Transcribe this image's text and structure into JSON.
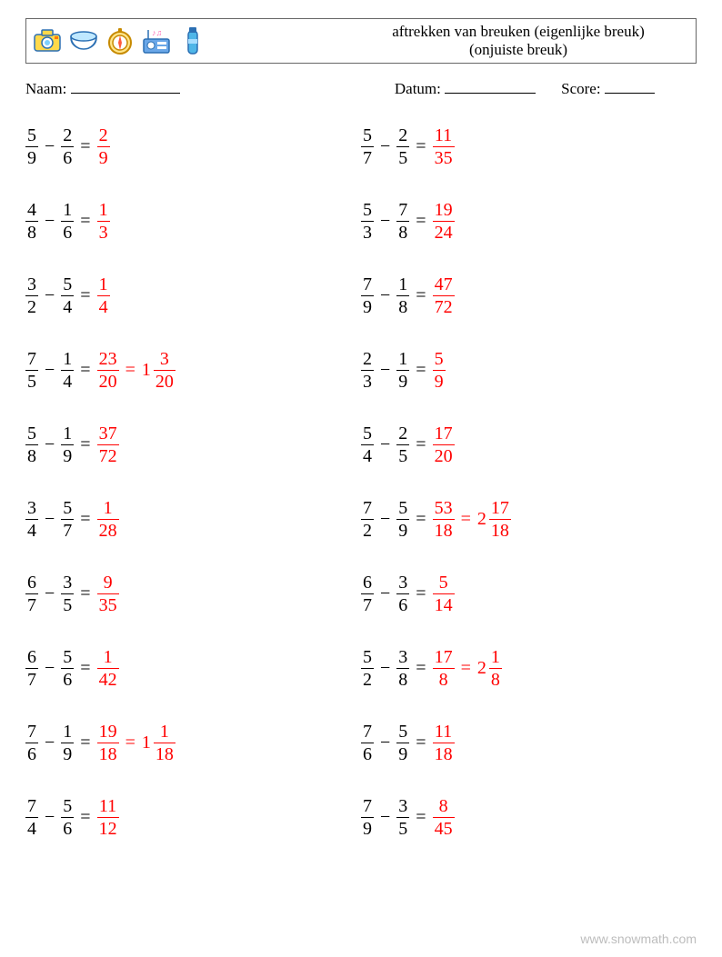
{
  "header": {
    "title_line1": "aftrekken van breuken (eigenlijke breuk)",
    "title_line2": "(onjuiste breuk)"
  },
  "meta": {
    "name_label": "Naam:",
    "date_label": "Datum:",
    "score_label": "Score:",
    "name_line_width": 120,
    "date_line_width": 100,
    "score_line_width": 55
  },
  "icons": [
    {
      "name": "camera-icon"
    },
    {
      "name": "bowl-icon"
    },
    {
      "name": "compass-icon"
    },
    {
      "name": "radio-icon"
    },
    {
      "name": "thermos-icon"
    }
  ],
  "columns": [
    [
      {
        "a": {
          "n": 5,
          "d": 9
        },
        "b": {
          "n": 2,
          "d": 6
        },
        "ans": [
          {
            "type": "frac",
            "n": 2,
            "d": 9
          }
        ]
      },
      {
        "a": {
          "n": 4,
          "d": 8
        },
        "b": {
          "n": 1,
          "d": 6
        },
        "ans": [
          {
            "type": "frac",
            "n": 1,
            "d": 3
          }
        ]
      },
      {
        "a": {
          "n": 3,
          "d": 2
        },
        "b": {
          "n": 5,
          "d": 4
        },
        "ans": [
          {
            "type": "frac",
            "n": 1,
            "d": 4
          }
        ]
      },
      {
        "a": {
          "n": 7,
          "d": 5
        },
        "b": {
          "n": 1,
          "d": 4
        },
        "ans": [
          {
            "type": "frac",
            "n": 23,
            "d": 20
          },
          {
            "type": "eq"
          },
          {
            "type": "mixed",
            "w": 1,
            "n": 3,
            "d": 20
          }
        ]
      },
      {
        "a": {
          "n": 5,
          "d": 8
        },
        "b": {
          "n": 1,
          "d": 9
        },
        "ans": [
          {
            "type": "frac",
            "n": 37,
            "d": 72
          }
        ]
      },
      {
        "a": {
          "n": 3,
          "d": 4
        },
        "b": {
          "n": 5,
          "d": 7
        },
        "ans": [
          {
            "type": "frac",
            "n": 1,
            "d": 28
          }
        ]
      },
      {
        "a": {
          "n": 6,
          "d": 7
        },
        "b": {
          "n": 3,
          "d": 5
        },
        "ans": [
          {
            "type": "frac",
            "n": 9,
            "d": 35
          }
        ]
      },
      {
        "a": {
          "n": 6,
          "d": 7
        },
        "b": {
          "n": 5,
          "d": 6
        },
        "ans": [
          {
            "type": "frac",
            "n": 1,
            "d": 42
          }
        ]
      },
      {
        "a": {
          "n": 7,
          "d": 6
        },
        "b": {
          "n": 1,
          "d": 9
        },
        "ans": [
          {
            "type": "frac",
            "n": 19,
            "d": 18
          },
          {
            "type": "eq"
          },
          {
            "type": "mixed",
            "w": 1,
            "n": 1,
            "d": 18
          }
        ]
      },
      {
        "a": {
          "n": 7,
          "d": 4
        },
        "b": {
          "n": 5,
          "d": 6
        },
        "ans": [
          {
            "type": "frac",
            "n": 11,
            "d": 12
          }
        ]
      }
    ],
    [
      {
        "a": {
          "n": 5,
          "d": 7
        },
        "b": {
          "n": 2,
          "d": 5
        },
        "ans": [
          {
            "type": "frac",
            "n": 11,
            "d": 35
          }
        ]
      },
      {
        "a": {
          "n": 5,
          "d": 3
        },
        "b": {
          "n": 7,
          "d": 8
        },
        "ans": [
          {
            "type": "frac",
            "n": 19,
            "d": 24
          }
        ]
      },
      {
        "a": {
          "n": 7,
          "d": 9
        },
        "b": {
          "n": 1,
          "d": 8
        },
        "ans": [
          {
            "type": "frac",
            "n": 47,
            "d": 72
          }
        ]
      },
      {
        "a": {
          "n": 2,
          "d": 3
        },
        "b": {
          "n": 1,
          "d": 9
        },
        "ans": [
          {
            "type": "frac",
            "n": 5,
            "d": 9
          }
        ]
      },
      {
        "a": {
          "n": 5,
          "d": 4
        },
        "b": {
          "n": 2,
          "d": 5
        },
        "ans": [
          {
            "type": "frac",
            "n": 17,
            "d": 20
          }
        ]
      },
      {
        "a": {
          "n": 7,
          "d": 2
        },
        "b": {
          "n": 5,
          "d": 9
        },
        "ans": [
          {
            "type": "frac",
            "n": 53,
            "d": 18
          },
          {
            "type": "eq"
          },
          {
            "type": "mixed",
            "w": 2,
            "n": 17,
            "d": 18
          }
        ]
      },
      {
        "a": {
          "n": 6,
          "d": 7
        },
        "b": {
          "n": 3,
          "d": 6
        },
        "ans": [
          {
            "type": "frac",
            "n": 5,
            "d": 14
          }
        ]
      },
      {
        "a": {
          "n": 5,
          "d": 2
        },
        "b": {
          "n": 3,
          "d": 8
        },
        "ans": [
          {
            "type": "frac",
            "n": 17,
            "d": 8
          },
          {
            "type": "eq"
          },
          {
            "type": "mixed",
            "w": 2,
            "n": 1,
            "d": 8
          }
        ]
      },
      {
        "a": {
          "n": 7,
          "d": 6
        },
        "b": {
          "n": 5,
          "d": 9
        },
        "ans": [
          {
            "type": "frac",
            "n": 11,
            "d": 18
          }
        ]
      },
      {
        "a": {
          "n": 7,
          "d": 9
        },
        "b": {
          "n": 3,
          "d": 5
        },
        "ans": [
          {
            "type": "frac",
            "n": 8,
            "d": 45
          }
        ]
      }
    ]
  ],
  "footer": {
    "text": "www.snowmath.com"
  },
  "style": {
    "answer_color": "#ff0000",
    "text_color": "#000000",
    "font_size": 20
  }
}
